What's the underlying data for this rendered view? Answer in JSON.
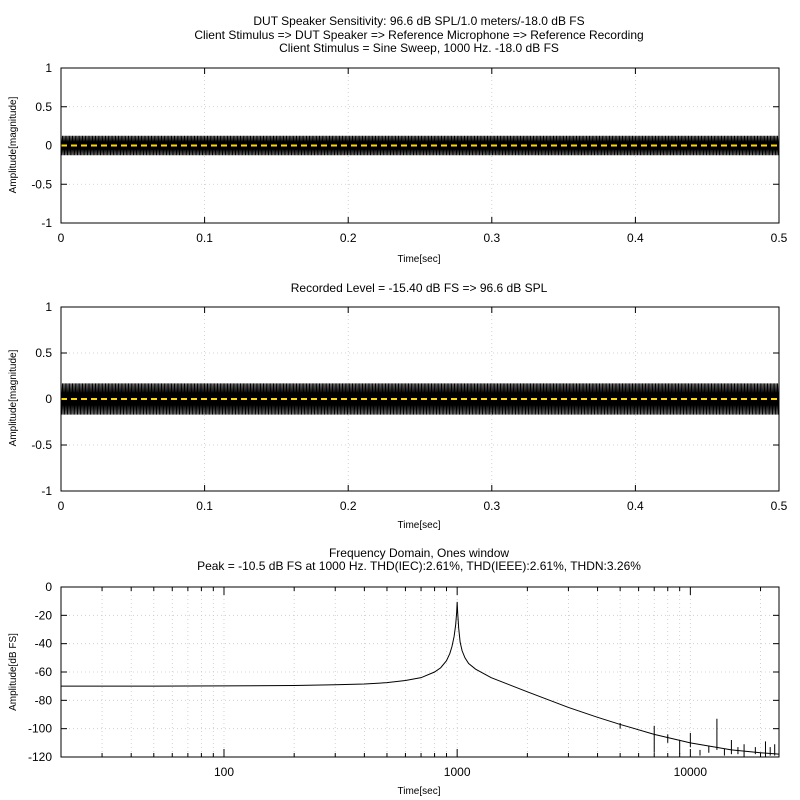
{
  "colors": {
    "signal": "#000000",
    "center_line": "#ffd700",
    "grid": "#c8c8c8"
  },
  "chart_data": [
    {
      "type": "line",
      "title_lines": [
        "DUT Speaker Sensitivity: 96.6 dB SPL/1.0 meters/-18.0 dB FS",
        "Client Stimulus => DUT Speaker => Reference Microphone => Reference Recording",
        "Client Stimulus = Sine Sweep, 1000 Hz. -18.0 dB FS"
      ],
      "xlabel": "Time[sec]",
      "ylabel": "Amplitude[magnitude]",
      "xlim": [
        0,
        0.5
      ],
      "ylim": [
        -1,
        1
      ],
      "xticks": [
        "0",
        "0.1",
        "0.2",
        "0.3",
        "0.4",
        "0.5"
      ],
      "yticks": [
        "1",
        "0.5",
        "0",
        "-0.5",
        "-1"
      ],
      "xtick_values": [
        0,
        0.1,
        0.2,
        0.3,
        0.4,
        0.5
      ],
      "ytick_values": [
        1,
        0.5,
        0,
        -0.5,
        -1
      ],
      "grid": true,
      "series": [
        {
          "frequency_hz": 1000,
          "amplitude": 0.126,
          "color": "#000000"
        },
        {
          "constant": 0,
          "color": "#ffd700",
          "dashed": true
        }
      ]
    },
    {
      "type": "line",
      "title_lines": [
        "Recorded Level = -15.40 dB FS  => 96.6 dB SPL"
      ],
      "xlabel": "Time[sec]",
      "ylabel": "Amplitude[magnitude]",
      "xlim": [
        0,
        0.5
      ],
      "ylim": [
        -1,
        1
      ],
      "xticks": [
        "0",
        "0.1",
        "0.2",
        "0.3",
        "0.4",
        "0.5"
      ],
      "yticks": [
        "1",
        "0.5",
        "0",
        "-0.5",
        "-1"
      ],
      "xtick_values": [
        0,
        0.1,
        0.2,
        0.3,
        0.4,
        0.5
      ],
      "ytick_values": [
        1,
        0.5,
        0,
        -0.5,
        -1
      ],
      "grid": true,
      "series": [
        {
          "frequency_hz": 1000,
          "amplitude": 0.17,
          "color": "#000000"
        },
        {
          "constant": 0,
          "color": "#ffd700",
          "dashed": true
        }
      ]
    },
    {
      "type": "line",
      "title_lines": [
        "Frequency Domain, Ones window",
        "Peak = -10.5 dB FS at 1000 Hz. THD(IEC):2.61%, THD(IEEE):2.61%, THDN:3.26%"
      ],
      "xlabel": "Time[sec]",
      "ylabel": "Amplitude[dB FS]",
      "xscale": "log",
      "xlim": [
        20,
        24000
      ],
      "ylim": [
        -120,
        0
      ],
      "xticks": [
        "100",
        "1000",
        "10000"
      ],
      "yticks": [
        "0",
        "-20",
        "-40",
        "-60",
        "-80",
        "-100",
        "-120"
      ],
      "xtick_values": [
        100,
        1000,
        10000
      ],
      "ytick_values": [
        0,
        -20,
        -40,
        -60,
        -80,
        -100,
        -120
      ],
      "grid": true,
      "series": [
        {
          "color": "#000000",
          "x": [
            20,
            50,
            100,
            200,
            300,
            400,
            500,
            600,
            700,
            800,
            850,
            900,
            930,
            950,
            970,
            985,
            995,
            1000,
            1005,
            1015,
            1030,
            1050,
            1080,
            1120,
            1200,
            1400,
            2000,
            3000,
            4000,
            5000,
            7000,
            10000,
            15000,
            20000,
            24000
          ],
          "y": [
            -70,
            -70,
            -69.8,
            -69.5,
            -69,
            -68.5,
            -67.5,
            -66,
            -64,
            -60,
            -57,
            -52,
            -47,
            -42,
            -35,
            -27,
            -18,
            -10.5,
            -18,
            -29,
            -39,
            -45,
            -50,
            -54,
            -58,
            -64,
            -74,
            -85,
            -92,
            -97,
            -104,
            -110,
            -115,
            -117,
            -118
          ]
        }
      ],
      "harmonic_spikes": [
        {
          "x": 5000,
          "top": -96,
          "bottom": -100
        },
        {
          "x": 7000,
          "top": -98,
          "bottom": -117
        },
        {
          "x": 8000,
          "top": -104,
          "bottom": -110
        },
        {
          "x": 9000,
          "top": -108,
          "bottom": -118
        },
        {
          "x": 10000,
          "top": -103,
          "bottom": -113
        },
        {
          "x": 11000,
          "top": -115,
          "bottom": -119
        },
        {
          "x": 12000,
          "top": -112,
          "bottom": -117
        },
        {
          "x": 13000,
          "top": -93,
          "bottom": -115
        },
        {
          "x": 14000,
          "top": -114,
          "bottom": -119
        },
        {
          "x": 15000,
          "top": -108,
          "bottom": -118
        },
        {
          "x": 16000,
          "top": -113,
          "bottom": -118
        },
        {
          "x": 17000,
          "top": -111,
          "bottom": -120
        },
        {
          "x": 19000,
          "top": -113,
          "bottom": -118
        },
        {
          "x": 21000,
          "top": -109,
          "bottom": -120
        },
        {
          "x": 22000,
          "top": -113,
          "bottom": -119
        },
        {
          "x": 23000,
          "top": -111,
          "bottom": -119
        },
        {
          "x": 24000,
          "top": -113,
          "bottom": -118
        }
      ]
    }
  ]
}
